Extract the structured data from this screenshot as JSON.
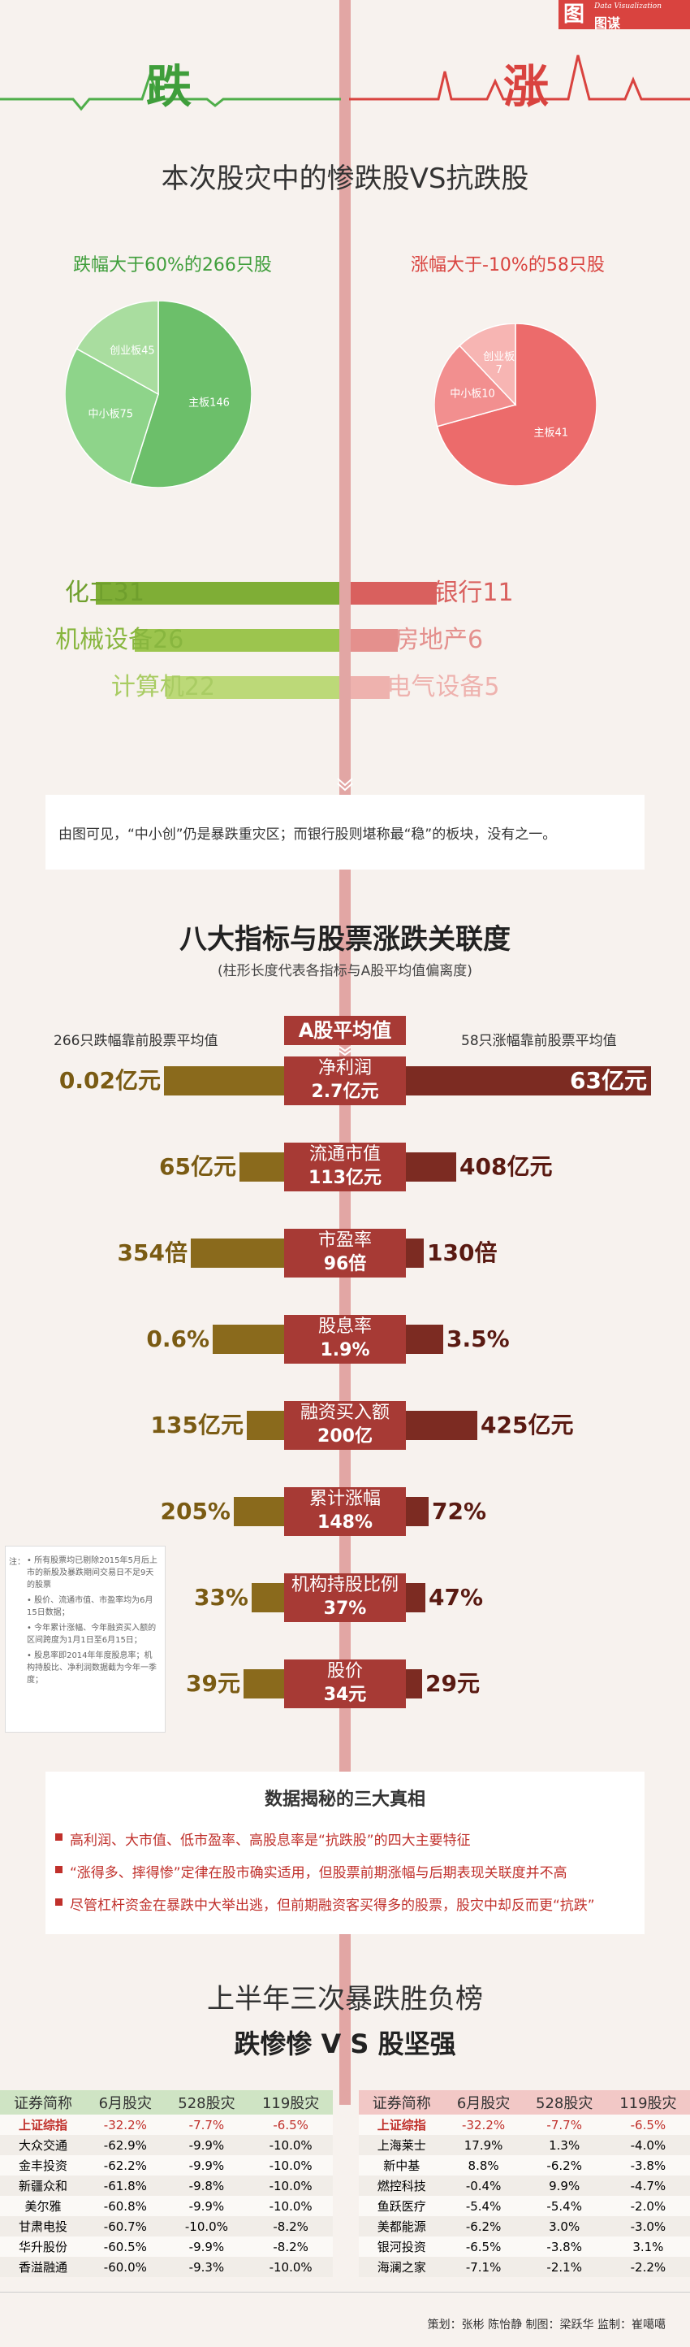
{
  "logo": {
    "mark": "图",
    "en": "Data Visualization",
    "cn": "图谋"
  },
  "hero": {
    "left": "跌",
    "right": "涨"
  },
  "title1": "本次股灾中的惨跌股VS抗跌股",
  "left_head": "跌幅大于60%的266只股",
  "right_head": "涨幅大于-10%的58只股",
  "chart_data": [
    {
      "type": "pie",
      "title": "跌幅大于60%的266只股",
      "slices": [
        {
          "label": "主板",
          "value": 146,
          "color": "#6cbf6a"
        },
        {
          "label": "中小板",
          "value": 75,
          "color": "#8ed48a"
        },
        {
          "label": "创业板",
          "value": 45,
          "color": "#a9dd9f"
        }
      ]
    },
    {
      "type": "pie",
      "title": "涨幅大于-10%的58只股",
      "slices": [
        {
          "label": "主板",
          "value": 41,
          "color": "#ec6b6b"
        },
        {
          "label": "中小板",
          "value": 10,
          "color": "#f28f8f"
        },
        {
          "label": "创业板",
          "value": 7,
          "color": "#f7b5b3"
        }
      ]
    },
    {
      "type": "bar",
      "series": [
        {
          "side": "left",
          "categories": [
            "化工",
            "机械设备",
            "计算机"
          ],
          "values": [
            31,
            26,
            22
          ],
          "colors": [
            "#7fae36",
            "#9cc54e",
            "#bcd978"
          ],
          "text_colors": [
            "#6f9f2d",
            "#88b63f",
            "#a9cc63"
          ]
        },
        {
          "side": "right",
          "categories": [
            "银行",
            "房地产",
            "电气设备"
          ],
          "values": [
            11,
            6,
            5
          ],
          "colors": [
            "#d9605e",
            "#e4908d",
            "#eeb2ae"
          ],
          "text_colors": [
            "#d9605e",
            "#e4908d",
            "#eeb2ae"
          ]
        }
      ]
    },
    {
      "type": "bar",
      "title": "八大指标与股票涨跌关联度",
      "subtitle": "(柱形长度代表各指标与A股平均值偏离度)",
      "indicators": [
        {
          "name": "净利润",
          "avg": "2.7亿元",
          "left": "0.02亿元",
          "right": "63亿元",
          "left_len": 148,
          "right_len": 302
        },
        {
          "name": "流通市值",
          "avg": "113亿元",
          "left": "65亿元",
          "right": "408亿元",
          "left_len": 55,
          "right_len": 62
        },
        {
          "name": "市盈率",
          "avg": "96倍",
          "left": "354倍",
          "right": "130倍",
          "left_len": 115,
          "right_len": 22
        },
        {
          "name": "股息率",
          "avg": "1.9%",
          "left": "0.6%",
          "right": "3.5%",
          "left_len": 88,
          "right_len": 46
        },
        {
          "name": "融资买入额",
          "avg": "200亿",
          "left": "135亿元",
          "right": "425亿元",
          "left_len": 46,
          "right_len": 88
        },
        {
          "name": "累计涨幅",
          "avg": "148%",
          "left": "205%",
          "right": "72%",
          "left_len": 62,
          "right_len": 28
        },
        {
          "name": "机构持股比例",
          "avg": "37%",
          "left": "33%",
          "right": "47%",
          "left_len": 40,
          "right_len": 24
        },
        {
          "name": "股价",
          "avg": "34元",
          "left": "39元",
          "right": "29元",
          "left_len": 50,
          "right_len": 20
        }
      ]
    }
  ],
  "note1": "由图可见，“中小创”仍是暴跌重灾区；而银行股则堪称最“稳”的板块，没有之一。",
  "ind_center_head": "A股平均值",
  "ind_left_cap": "266只跌幅靠前股票平均值",
  "ind_right_cap": "58只涨幅靠前股票平均值",
  "side_note": {
    "lead": "注：",
    "items": [
      "所有股票均已剔除2015年5月后上市的新股及暴跌期间交易日不足9天的股票",
      "股价、流通市值、市盈率均为6月15日数据；",
      "今年累计涨幅、今年融资买入额的区间跨度为1月1日至6月15日；",
      "股息率即2014年年度股息率；机构持股比、净利润数据截为今年一季度；"
    ]
  },
  "truths": {
    "title": "数据揭秘的三大真相",
    "items": [
      "高利润、大市值、低市盈率、高股息率是“抗跌股”的四大主要特征",
      "“涨得多、摔得惨”定律在股市确实适用，但股票前期涨幅与后期表现关联度并不高",
      "尽管杠杆资金在暴跌中大举出逃，但前期融资客买得多的股票，股灾中却反而更“抗跌”"
    ]
  },
  "board": {
    "title1": "上半年三次暴跌胜负榜",
    "title2": "跌惨惨 V S 股坚强",
    "headers": [
      "证券简称",
      "6月股灾",
      "528股灾",
      "119股灾"
    ],
    "left_rows": [
      [
        "上证综指",
        "-32.2%",
        "-7.7%",
        "-6.5%"
      ],
      [
        "大众交通",
        "-62.9%",
        "-9.9%",
        "-10.0%"
      ],
      [
        "金丰投资",
        "-62.2%",
        "-9.9%",
        "-10.0%"
      ],
      [
        "新疆众和",
        "-61.8%",
        "-9.8%",
        "-10.0%"
      ],
      [
        "美尔雅",
        "-60.8%",
        "-9.9%",
        "-10.0%"
      ],
      [
        "甘肃电投",
        "-60.7%",
        "-10.0%",
        "-8.2%"
      ],
      [
        "华升股份",
        "-60.5%",
        "-9.9%",
        "-8.2%"
      ],
      [
        "香溢融通",
        "-60.0%",
        "-9.3%",
        "-10.0%"
      ]
    ],
    "right_rows": [
      [
        "上证综指",
        "-32.2%",
        "-7.7%",
        "-6.5%"
      ],
      [
        "上海莱士",
        "17.9%",
        "1.3%",
        "-4.0%"
      ],
      [
        "新中基",
        "8.8%",
        "-6.2%",
        "-3.8%"
      ],
      [
        "燃控科技",
        "-0.4%",
        "9.9%",
        "-4.7%"
      ],
      [
        "鱼跃医疗",
        "-5.4%",
        "-5.4%",
        "-2.0%"
      ],
      [
        "美都能源",
        "-6.2%",
        "3.0%",
        "-3.0%"
      ],
      [
        "银河投资",
        "-6.5%",
        "-3.8%",
        "3.1%"
      ],
      [
        "海澜之家",
        "-7.1%",
        "-2.1%",
        "-2.2%"
      ]
    ]
  },
  "footer": "策划：张彬 陈怡静   制图：梁跃华   监制：崔噶噶"
}
